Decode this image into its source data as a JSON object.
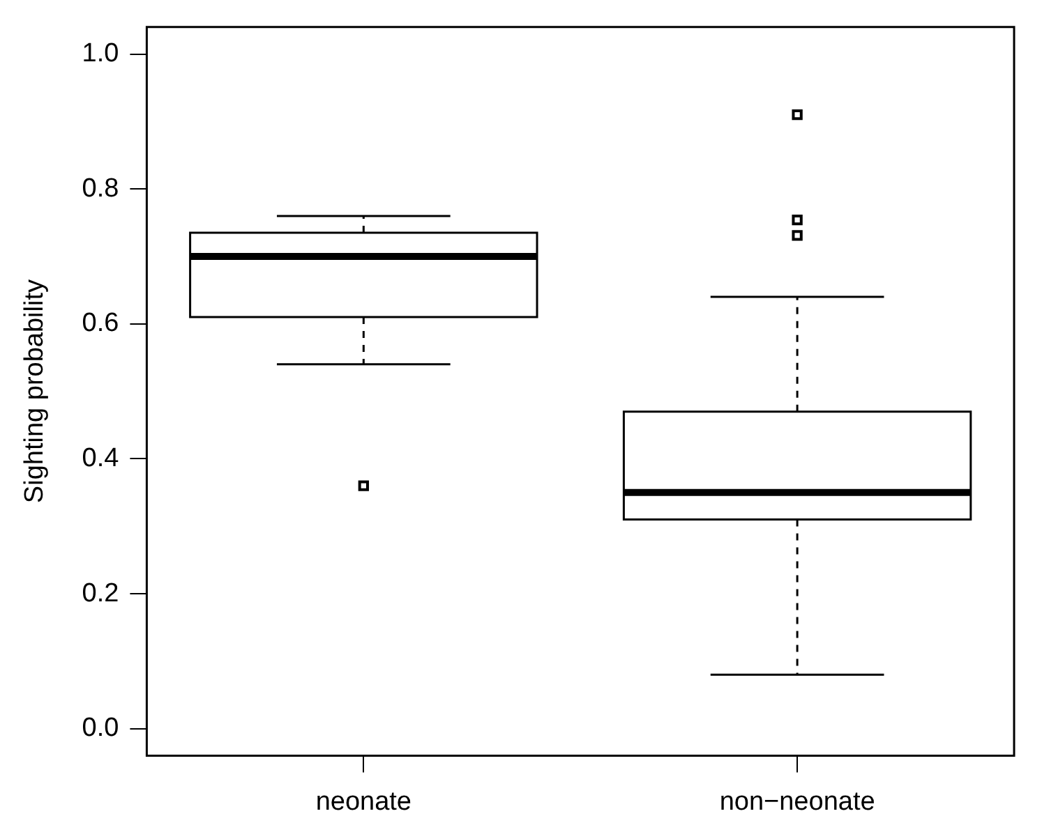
{
  "chart_data": {
    "type": "box",
    "ylabel": "Sighting probability",
    "categories": [
      "neonate",
      "non−neonate"
    ],
    "boxes": [
      {
        "low": 0.54,
        "q1": 0.61,
        "median": 0.7,
        "q3": 0.735,
        "high": 0.76,
        "outliers": [
          0.36
        ]
      },
      {
        "low": 0.08,
        "q1": 0.31,
        "median": 0.35,
        "q3": 0.47,
        "high": 0.64,
        "outliers": [
          0.91,
          0.754,
          0.731
        ]
      }
    ],
    "ylim": [
      -0.04,
      1.04
    ],
    "yticks": [
      {
        "value": 0,
        "label": "0.0"
      },
      {
        "value": 0.2,
        "label": "0.2"
      },
      {
        "value": 0.4,
        "label": "0.4"
      },
      {
        "value": 0.6,
        "label": "0.6"
      },
      {
        "value": 0.8,
        "label": "0.8"
      },
      {
        "value": 1,
        "label": "1.0"
      }
    ],
    "grid": false,
    "legend": false
  }
}
